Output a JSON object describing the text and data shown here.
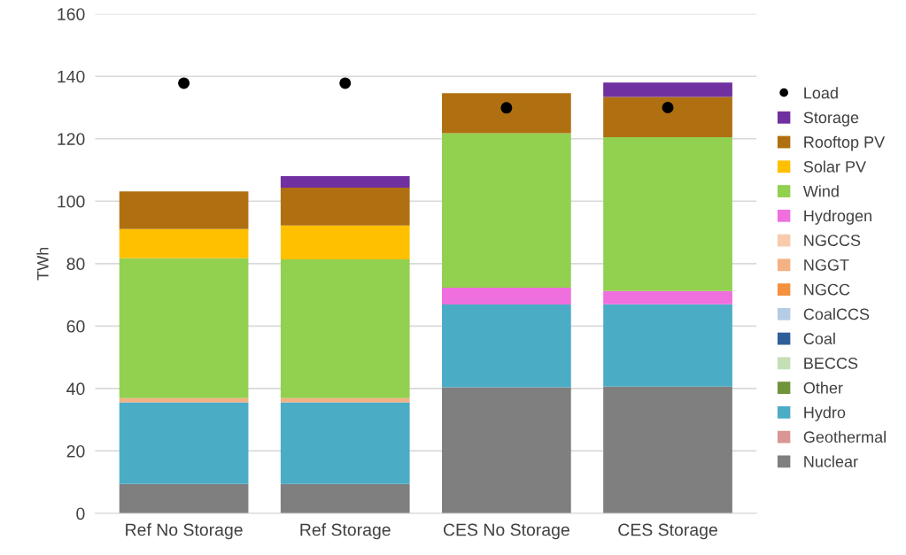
{
  "chart_data": {
    "type": "bar",
    "stacked": true,
    "ylabel": "TWh",
    "categories": [
      "Ref No Storage",
      "Ref Storage",
      "CES No Storage",
      "CES Storage"
    ],
    "ylim": [
      0,
      160
    ],
    "yticks": [
      0,
      20,
      40,
      60,
      80,
      100,
      120,
      140,
      160
    ],
    "grid": "y",
    "legend": "right",
    "series": [
      {
        "name": "Nuclear",
        "color": "#7f7f7f",
        "values": [
          9.4,
          9.4,
          40.4,
          40.6
        ]
      },
      {
        "name": "Geothermal",
        "color": "#d99694",
        "values": [
          0,
          0,
          0,
          0
        ]
      },
      {
        "name": "Hydro",
        "color": "#4bacc6",
        "values": [
          26.2,
          26.2,
          26.5,
          26.4
        ]
      },
      {
        "name": "Other",
        "color": "#70943a",
        "values": [
          0,
          0,
          0,
          0
        ]
      },
      {
        "name": "BECCS",
        "color": "#c5e0b4",
        "values": [
          0,
          0,
          0,
          0
        ]
      },
      {
        "name": "Coal",
        "color": "#2f5f98",
        "values": [
          0,
          0,
          0,
          0
        ]
      },
      {
        "name": "CoalCCS",
        "color": "#b4cce4",
        "values": [
          0,
          0,
          0,
          0
        ]
      },
      {
        "name": "NGCC",
        "color": "#f4913f",
        "values": [
          0,
          0,
          0,
          0
        ]
      },
      {
        "name": "NGGT",
        "color": "#f4b183",
        "values": [
          1.3,
          1.3,
          0,
          0
        ]
      },
      {
        "name": "NGCCS",
        "color": "#f8cbad",
        "values": [
          0,
          0,
          0,
          0
        ]
      },
      {
        "name": "Hydrogen",
        "color": "#ef6fdf",
        "values": [
          0,
          0,
          5.4,
          4.2
        ]
      },
      {
        "name": "Wind",
        "color": "#92d050",
        "values": [
          44.8,
          44.5,
          49.5,
          49.3
        ]
      },
      {
        "name": "Solar PV",
        "color": "#ffc000",
        "values": [
          9.4,
          10.8,
          0,
          0
        ]
      },
      {
        "name": "Rooftop PV",
        "color": "#b07012",
        "values": [
          12.0,
          12.1,
          12.8,
          12.9
        ]
      },
      {
        "name": "Storage",
        "color": "#7030a0",
        "values": [
          0,
          3.7,
          0,
          4.6
        ]
      },
      {
        "name": "Load",
        "type": "scatter",
        "marker": "circle",
        "color": "#000000",
        "x": [
          "Ref No Storage",
          "Ref Storage",
          "CES No Storage",
          "CES Storage"
        ],
        "values": [
          137.8,
          137.8,
          129.9,
          130.0
        ]
      }
    ]
  }
}
